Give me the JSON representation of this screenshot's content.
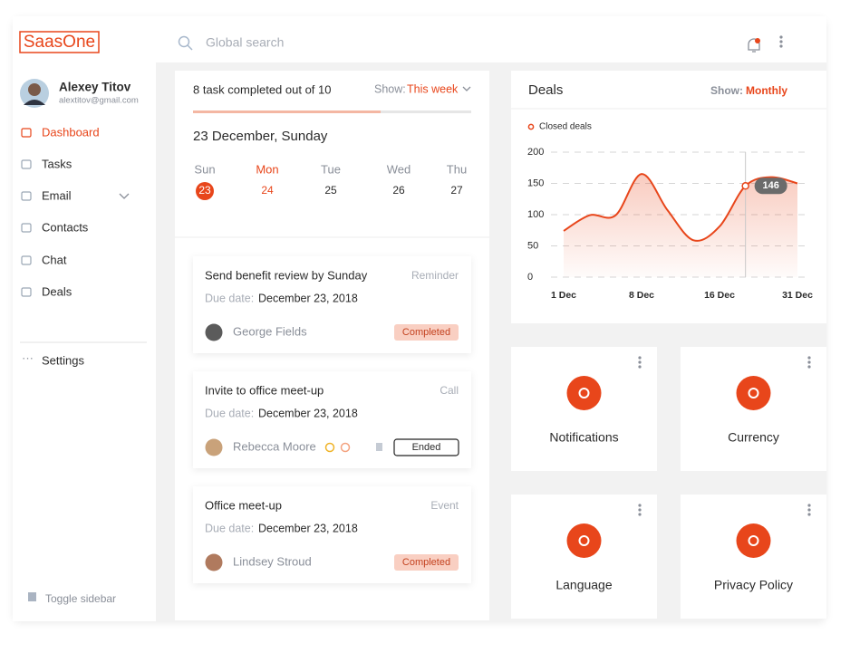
{
  "sidebar": {
    "logo": "SaasOne",
    "user": {
      "name": "Alexey Titov",
      "email": "alextitov@gmail.com"
    },
    "nav": [
      "Dashboard",
      "Tasks",
      "Email",
      "Contacts",
      "Chat",
      "Deals"
    ],
    "settings": "Settings",
    "toggle": "Toggle sidebar"
  },
  "topbar": {
    "search": "Global search"
  },
  "tasks": {
    "summary": "8 task completed out of 10",
    "show_label": "Show:",
    "show_value": "This week",
    "date": "23 December, Sunday",
    "days": [
      {
        "name": "Sun",
        "date": 23
      },
      {
        "name": "Mon",
        "date": 24
      },
      {
        "name": "Tue",
        "date": 25
      },
      {
        "name": "Wed",
        "date": 26
      },
      {
        "name": "Thu",
        "date": 27
      }
    ],
    "items": [
      {
        "title": "Send benefit review by Sunday",
        "type": "Reminder",
        "due_label": "Due date:",
        "due": "December 23, 2018",
        "assignee": "George Fields",
        "status": "Completed"
      },
      {
        "title": "Invite to office meet-up",
        "type": "Call",
        "due_label": "Due date:",
        "due": "December 23, 2018",
        "assignee": "Rebecca Moore",
        "status": "Ended"
      },
      {
        "title": "Office meet-up",
        "type": "Event",
        "due_label": "Due date:",
        "due": "December 23, 2018",
        "assignee": "Lindsey Stroud",
        "status": "Completed"
      }
    ]
  },
  "deals": {
    "title": "Deals",
    "show_label": "Show:",
    "show_value": "Monthly",
    "chart": {
      "type": "line",
      "categories": [
        "1 Dec",
        null,
        null,
        "8 Dec",
        null,
        null,
        "16 Dec",
        null,
        null,
        "31 Dec"
      ],
      "series": [
        {
          "name": "Closed deals",
          "color": "#e8461b",
          "values": [
            74,
            99,
            99,
            165,
            107,
            59,
            81,
            146,
            160,
            150
          ]
        }
      ],
      "annotation": 146,
      "ylim": [
        0,
        200
      ],
      "yticks": [
        0,
        50,
        100,
        150,
        200
      ],
      "grid": true
    }
  },
  "tiles": [
    "Notifications",
    "Currency",
    "Language",
    "Privacy Policy"
  ]
}
